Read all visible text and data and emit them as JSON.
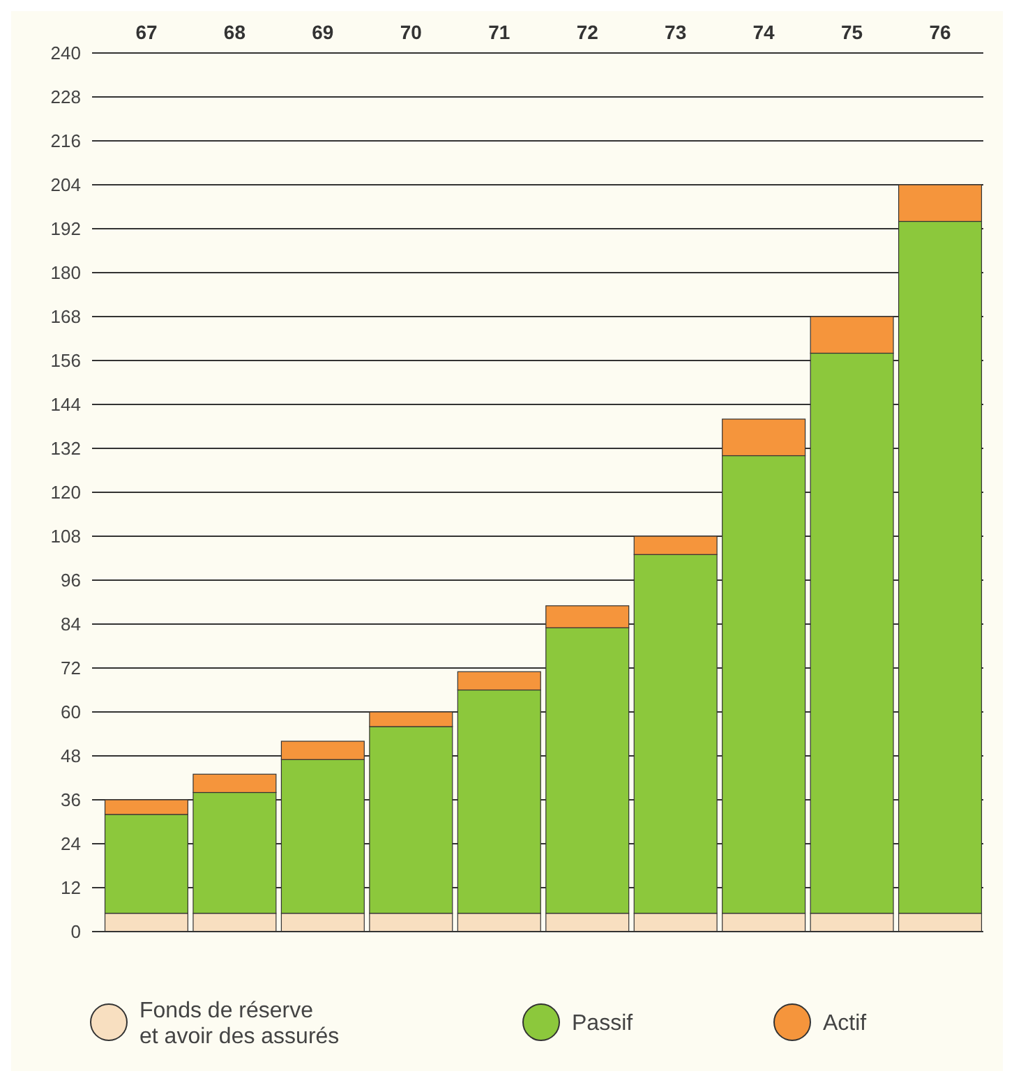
{
  "chart_data": {
    "type": "bar",
    "stacked": true,
    "categories": [
      "67",
      "68",
      "69",
      "70",
      "71",
      "72",
      "73",
      "74",
      "75",
      "76"
    ],
    "series": [
      {
        "name": "Fonds de réserve\net avoir des assurés",
        "color": "#f8dfc0",
        "values": [
          5,
          5,
          5,
          5,
          5,
          5,
          5,
          5,
          5,
          5
        ]
      },
      {
        "name": "Passif",
        "color": "#8cc83c",
        "values": [
          27,
          33,
          42,
          51,
          61,
          78,
          98,
          125,
          153,
          189
        ]
      },
      {
        "name": "Actif",
        "color": "#f5953c",
        "values": [
          4,
          5,
          5,
          4,
          5,
          6,
          5,
          10,
          10,
          10
        ]
      }
    ],
    "ylim": [
      0,
      240
    ],
    "yticks": [
      0,
      12,
      24,
      36,
      48,
      60,
      72,
      84,
      96,
      108,
      120,
      132,
      144,
      156,
      168,
      180,
      192,
      204,
      216,
      228,
      240
    ],
    "grid": "y",
    "legend": "bottom"
  }
}
